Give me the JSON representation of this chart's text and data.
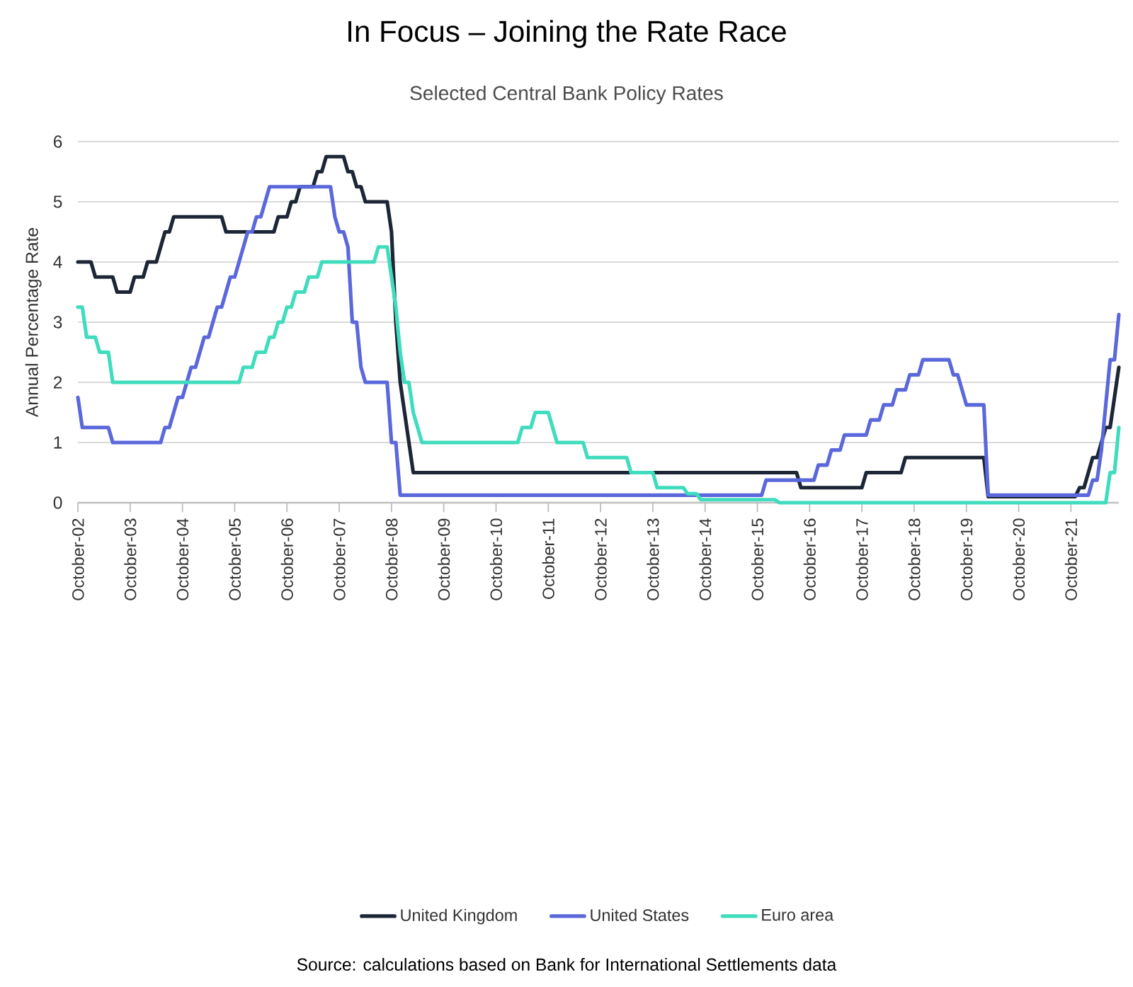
{
  "chart_data": {
    "type": "line",
    "title": "In Focus – Joining the Rate Race",
    "subtitle": "Selected Central Bank Policy Rates",
    "ylabel": "Annual Percentage Rate",
    "annotations": [
      "Source: calculations based on Bank for International Settlements data"
    ],
    "xlim": [
      "2002-10",
      "2022-09"
    ],
    "xticks": [
      {
        "value": "2002-10",
        "label": "October-02"
      },
      {
        "value": "2003-10",
        "label": "October-03"
      },
      {
        "value": "2004-10",
        "label": "October-04"
      },
      {
        "value": "2005-10",
        "label": "October-05"
      },
      {
        "value": "2006-10",
        "label": "October-06"
      },
      {
        "value": "2007-10",
        "label": "October-07"
      },
      {
        "value": "2008-10",
        "label": "October-08"
      },
      {
        "value": "2009-10",
        "label": "October-09"
      },
      {
        "value": "2010-10",
        "label": "October-10"
      },
      {
        "value": "2011-10",
        "label": "October-11"
      },
      {
        "value": "2012-10",
        "label": "October-12"
      },
      {
        "value": "2013-10",
        "label": "October-13"
      },
      {
        "value": "2014-10",
        "label": "October-14"
      },
      {
        "value": "2015-10",
        "label": "October-15"
      },
      {
        "value": "2016-10",
        "label": "October-16"
      },
      {
        "value": "2017-10",
        "label": "October-17"
      },
      {
        "value": "2018-10",
        "label": "October-18"
      },
      {
        "value": "2019-10",
        "label": "October-19"
      },
      {
        "value": "2020-10",
        "label": "October-20"
      },
      {
        "value": "2021-10",
        "label": "October-21"
      }
    ],
    "ylim": [
      0,
      6
    ],
    "yticks": [
      0,
      1,
      2,
      3,
      4,
      5,
      6
    ],
    "grid": "y",
    "legend": "bottom",
    "series": [
      {
        "name": "United Kingdom",
        "color": "#1c2636",
        "x": [
          "2002-10",
          "2003-01",
          "2003-02",
          "2003-06",
          "2003-07",
          "2003-10",
          "2003-11",
          "2004-01",
          "2004-02",
          "2004-04",
          "2004-05",
          "2004-06",
          "2004-07",
          "2004-08",
          "2005-07",
          "2005-08",
          "2006-07",
          "2006-08",
          "2006-10",
          "2006-11",
          "2006-12",
          "2007-01",
          "2007-04",
          "2007-05",
          "2007-06",
          "2007-07",
          "2007-11",
          "2007-12",
          "2008-01",
          "2008-02",
          "2008-03",
          "2008-04",
          "2008-09",
          "2008-10",
          "2008-11",
          "2008-12",
          "2009-01",
          "2009-02",
          "2009-03",
          "2016-07",
          "2016-08",
          "2017-10",
          "2017-11",
          "2018-07",
          "2018-08",
          "2020-02",
          "2020-03",
          "2021-11",
          "2021-12",
          "2022-01",
          "2022-02",
          "2022-03",
          "2022-04",
          "2022-05",
          "2022-06",
          "2022-07",
          "2022-08",
          "2022-09"
        ],
        "values": [
          4.0,
          4.0,
          3.75,
          3.75,
          3.5,
          3.5,
          3.75,
          3.75,
          4.0,
          4.0,
          4.25,
          4.5,
          4.5,
          4.75,
          4.75,
          4.5,
          4.5,
          4.75,
          4.75,
          5.0,
          5.0,
          5.25,
          5.25,
          5.5,
          5.5,
          5.75,
          5.75,
          5.5,
          5.5,
          5.25,
          5.25,
          5.0,
          5.0,
          4.5,
          3.0,
          2.0,
          1.5,
          1.0,
          0.5,
          0.5,
          0.25,
          0.25,
          0.5,
          0.5,
          0.75,
          0.75,
          0.1,
          0.1,
          0.25,
          0.25,
          0.5,
          0.75,
          0.75,
          1.0,
          1.25,
          1.25,
          1.75,
          2.25
        ]
      },
      {
        "name": "United States",
        "color": "#5a68dc",
        "x": [
          "2002-10",
          "2002-11",
          "2003-05",
          "2003-06",
          "2004-05",
          "2004-06",
          "2004-07",
          "2004-08",
          "2004-09",
          "2004-10",
          "2004-11",
          "2004-12",
          "2005-01",
          "2005-02",
          "2005-03",
          "2005-04",
          "2005-05",
          "2005-06",
          "2005-07",
          "2005-08",
          "2005-09",
          "2005-10",
          "2005-11",
          "2005-12",
          "2006-01",
          "2006-02",
          "2006-03",
          "2006-04",
          "2006-05",
          "2006-06",
          "2007-08",
          "2007-09",
          "2007-10",
          "2007-11",
          "2007-12",
          "2008-01",
          "2008-02",
          "2008-03",
          "2008-04",
          "2008-09",
          "2008-10",
          "2008-11",
          "2008-12",
          "2015-11",
          "2015-12",
          "2016-11",
          "2016-12",
          "2017-02",
          "2017-03",
          "2017-05",
          "2017-06",
          "2017-11",
          "2017-12",
          "2018-02",
          "2018-03",
          "2018-05",
          "2018-06",
          "2018-08",
          "2018-09",
          "2018-11",
          "2018-12",
          "2019-06",
          "2019-07",
          "2019-08",
          "2019-09",
          "2019-10",
          "2020-02",
          "2020-03",
          "2022-02",
          "2022-03",
          "2022-04",
          "2022-05",
          "2022-06",
          "2022-07",
          "2022-08",
          "2022-09"
        ],
        "values": [
          1.75,
          1.25,
          1.25,
          1.0,
          1.0,
          1.25,
          1.25,
          1.5,
          1.75,
          1.75,
          2.0,
          2.25,
          2.25,
          2.5,
          2.75,
          2.75,
          3.0,
          3.25,
          3.25,
          3.5,
          3.75,
          3.75,
          4.0,
          4.25,
          4.5,
          4.5,
          4.75,
          4.75,
          5.0,
          5.25,
          5.25,
          4.75,
          4.5,
          4.5,
          4.25,
          3.0,
          3.0,
          2.25,
          2.0,
          2.0,
          1.0,
          1.0,
          0.125,
          0.125,
          0.375,
          0.375,
          0.625,
          0.625,
          0.875,
          0.875,
          1.125,
          1.125,
          1.375,
          1.375,
          1.625,
          1.625,
          1.875,
          1.875,
          2.125,
          2.125,
          2.375,
          2.375,
          2.125,
          2.125,
          1.875,
          1.625,
          1.625,
          0.125,
          0.125,
          0.375,
          0.375,
          0.875,
          1.625,
          2.375,
          2.375,
          3.125
        ]
      },
      {
        "name": "Euro area",
        "color": "#40dcbe",
        "x": [
          "2002-10",
          "2002-11",
          "2002-12",
          "2003-02",
          "2003-03",
          "2003-05",
          "2003-06",
          "2005-11",
          "2005-12",
          "2006-02",
          "2006-03",
          "2006-05",
          "2006-06",
          "2006-07",
          "2006-08",
          "2006-09",
          "2006-10",
          "2006-11",
          "2006-12",
          "2007-02",
          "2007-03",
          "2007-05",
          "2007-06",
          "2008-06",
          "2008-07",
          "2008-09",
          "2008-10",
          "2008-11",
          "2008-12",
          "2009-01",
          "2009-02",
          "2009-03",
          "2009-04",
          "2009-05",
          "2011-03",
          "2011-04",
          "2011-06",
          "2011-07",
          "2011-10",
          "2011-11",
          "2011-12",
          "2012-06",
          "2012-07",
          "2013-04",
          "2013-05",
          "2013-10",
          "2013-11",
          "2014-05",
          "2014-06",
          "2014-08",
          "2014-09",
          "2016-02",
          "2016-03",
          "2022-06",
          "2022-07",
          "2022-08",
          "2022-09"
        ],
        "values": [
          3.25,
          3.25,
          2.75,
          2.75,
          2.5,
          2.5,
          2.0,
          2.0,
          2.25,
          2.25,
          2.5,
          2.5,
          2.75,
          2.75,
          3.0,
          3.0,
          3.25,
          3.25,
          3.5,
          3.5,
          3.75,
          3.75,
          4.0,
          4.0,
          4.25,
          4.25,
          3.75,
          3.25,
          2.5,
          2.0,
          2.0,
          1.5,
          1.25,
          1.0,
          1.0,
          1.25,
          1.25,
          1.5,
          1.5,
          1.25,
          1.0,
          1.0,
          0.75,
          0.75,
          0.5,
          0.5,
          0.25,
          0.25,
          0.15,
          0.15,
          0.05,
          0.05,
          0.0,
          0.0,
          0.5,
          0.5,
          1.25
        ]
      }
    ]
  }
}
